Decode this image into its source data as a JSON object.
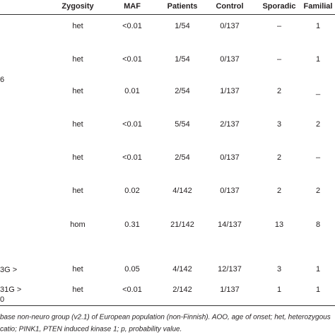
{
  "table": {
    "header": [
      "Zygosity",
      "MAF",
      "Patients",
      "Control",
      "Sporadic",
      "Familial"
    ],
    "rows": [
      {
        "cells": [
          "het",
          "<0.01",
          "1/54",
          "0/137",
          "–",
          "1"
        ]
      },
      {
        "cells": [
          "het",
          "<0.01",
          "1/54",
          "0/137",
          "–",
          "1"
        ]
      },
      {
        "label": [
          "6"
        ],
        "cells": [
          "het",
          "0.01",
          "2/54",
          "1/137",
          "2",
          "_"
        ]
      },
      {
        "cells": [
          "het",
          "<0.01",
          "5/54",
          "2/137",
          "3",
          "2"
        ]
      },
      {
        "cells": [
          "het",
          "<0.01",
          "2/54",
          "0/137",
          "2",
          "–"
        ]
      },
      {
        "cells": [
          "het",
          "0.02",
          "4/142",
          "0/137",
          "2",
          "2"
        ]
      },
      {
        "cells": [
          "hom",
          "0.31",
          "21/142",
          "14/137",
          "13",
          "8"
        ]
      },
      {
        "label": [
          "3G >"
        ],
        "cells": [
          "het",
          "0.05",
          "4/142",
          "12/137",
          "3",
          "1"
        ]
      },
      {
        "label": [
          "31G >",
          "0"
        ],
        "cells": [
          "het",
          "<0.01",
          "2/142",
          "1/137",
          "1",
          "1"
        ]
      }
    ]
  },
  "footnote": [
    "base non-neuro group (v2.1) of European population (non-Finnish). AOO, age of onset; het, heterozygous",
    "catio; PINK1, PTEN induced kinase 1; p, probability value."
  ]
}
